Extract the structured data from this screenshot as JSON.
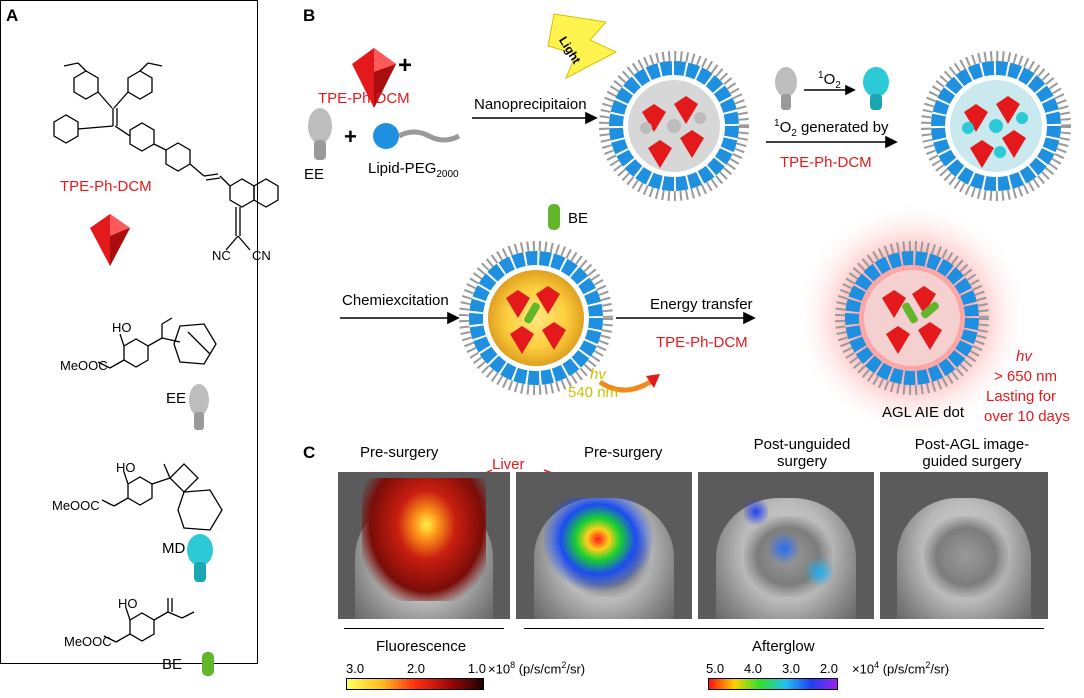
{
  "panels": {
    "a": "A",
    "b": "B",
    "c": "C"
  },
  "panelA": {
    "tpe_label": "TPE-Ph-DCM",
    "cn1": "NC",
    "cn2": "CN",
    "ee_ester": "MeOOC",
    "ee_label": "EE",
    "md_ester": "MeOOC",
    "md_label": "MD",
    "be_ester": "MeOOC",
    "be_label": "BE",
    "ho": "HO"
  },
  "panelB": {
    "tpe_label": "TPE-Ph-DCM",
    "plus1": "+",
    "plus2": "+",
    "ee_label": "EE",
    "lipid_label": "Lipid-PEG",
    "lipid_sub": "2000",
    "nanoprecip": "Nanoprecipitaion",
    "light": "Light",
    "o2_sup": "1",
    "o2": "O",
    "o2_sub": "2",
    "o2_generated_sup": "1",
    "o2_generated_pre": "O",
    "o2_generated_sub": "2",
    "o2_generated_post": " generated by",
    "tpe_label2": "TPE-Ph-DCM",
    "be_label": "BE",
    "chemiexcitation": "Chemiexcitation",
    "hv1": "hv",
    "nm540": "540 nm",
    "energy_transfer": "Energy transfer",
    "tpe_label3": "TPE-Ph-DCM",
    "agl_label": "AGL AIE dot",
    "hv2": "hv",
    "nm650": "> 650 nm",
    "lasting": "Lasting for",
    "days": "over 10 days"
  },
  "panelC": {
    "pre1": "Pre-surgery",
    "liver": "Liver",
    "pre2": "Pre-surgery",
    "post_unguided_1": "Post-unguided",
    "post_unguided_2": "surgery",
    "post_agl_1": "Post-AGL image-",
    "post_agl_2": "guided surgery",
    "fluorescence": "Fluorescence",
    "afterglow": "Afterglow",
    "fl_ticks": [
      "3.0",
      "2.0",
      "1.0"
    ],
    "fl_unit_base": "×10",
    "fl_unit_exp": "8",
    "fl_unit_rest": " (p/s/cm",
    "fl_unit_sq": "2",
    "fl_unit_end": "/sr)",
    "ag_ticks": [
      "5.0",
      "4.0",
      "3.0",
      "2.0"
    ],
    "ag_unit_base": "×10",
    "ag_unit_exp": "4",
    "ag_unit_rest": " (p/s/cm",
    "ag_unit_sq": "2",
    "ag_unit_end": "/sr)"
  },
  "colors": {
    "red": "#e3191c",
    "blue": "#1f8fe0",
    "cyan": "#2cc9d6",
    "green": "#63b52c",
    "yellow": "#fff44f"
  }
}
